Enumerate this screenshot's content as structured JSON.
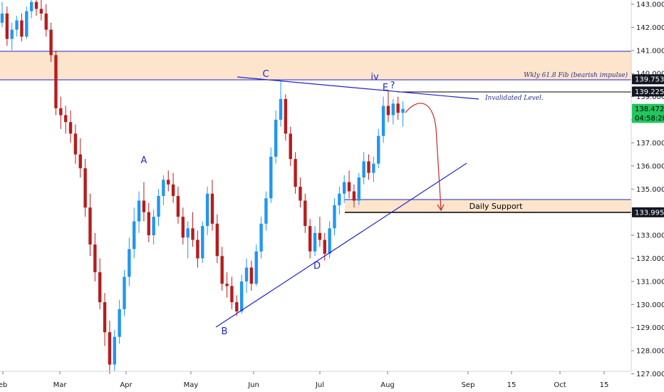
{
  "chart_data": {
    "type": "candlestick",
    "colors": {
      "up": "#2196f3",
      "down": "#b71c1c",
      "zone_fill": "#fce5cc",
      "line": "#2124c7",
      "projection": "#c62828"
    },
    "x_ticks": [
      "eb",
      "Mar",
      "Apr",
      "May",
      "Jun",
      "Jul",
      "Aug",
      "Sep",
      "15",
      "Oct",
      "15"
    ],
    "y_ticks": [
      "143.000",
      "142.000",
      "141.000",
      "140.000",
      "139.000",
      "138.000",
      "137.000",
      "136.000",
      "135.000",
      "134.000",
      "133.000",
      "132.000",
      "131.000",
      "130.000",
      "129.000",
      "128.000",
      "127.000"
    ],
    "ylim": [
      126.8,
      143.3
    ],
    "price_tags": [
      {
        "value": 139.753,
        "text": "139.753",
        "style": "dark"
      },
      {
        "value": 139.225,
        "text": "139.225",
        "style": "dark"
      },
      {
        "value": 138.472,
        "text": "138.472",
        "style": "green"
      },
      {
        "value": 138.08,
        "text": "04:58:28",
        "style": "green"
      },
      {
        "value": 133.995,
        "text": "133.995",
        "style": "dark"
      }
    ],
    "zones": [
      {
        "low": 139.753,
        "high": 140.98,
        "label": "Wkly 61.8 Fib (bearish impulse)"
      },
      {
        "low": 133.995,
        "high": 134.55,
        "label": "Daily Support"
      }
    ],
    "wave_labels": [
      "A",
      "B",
      "C",
      "D",
      "E",
      "?",
      "iv"
    ],
    "annotation": "Invalidated Level.",
    "candles": [
      [
        142.2,
        143.1,
        142.0,
        142.6
      ],
      [
        142.6,
        142.9,
        141.2,
        141.5
      ],
      [
        141.5,
        142.2,
        141.0,
        141.9
      ],
      [
        141.9,
        142.5,
        141.6,
        142.3
      ],
      [
        142.3,
        142.6,
        141.4,
        141.6
      ],
      [
        141.6,
        142.9,
        141.5,
        142.7
      ],
      [
        142.7,
        143.4,
        142.4,
        143.1
      ],
      [
        143.1,
        143.4,
        142.5,
        142.8
      ],
      [
        142.8,
        143.2,
        142.3,
        142.6
      ],
      [
        142.6,
        143.0,
        141.6,
        141.9
      ],
      [
        141.9,
        142.2,
        140.5,
        140.8
      ],
      [
        140.8,
        141.0,
        138.2,
        138.5
      ],
      [
        138.5,
        139.0,
        137.6,
        138.2
      ],
      [
        138.2,
        138.6,
        137.4,
        137.9
      ],
      [
        137.9,
        138.4,
        137.0,
        137.4
      ],
      [
        137.4,
        137.8,
        136.1,
        136.5
      ],
      [
        136.5,
        137.2,
        135.5,
        135.9
      ],
      [
        135.9,
        136.3,
        133.8,
        134.2
      ],
      [
        134.2,
        134.8,
        132.1,
        132.6
      ],
      [
        132.6,
        133.1,
        131.0,
        131.4
      ],
      [
        131.4,
        132.0,
        129.8,
        130.1
      ],
      [
        130.1,
        130.5,
        128.2,
        128.8
      ],
      [
        128.8,
        129.3,
        127.0,
        127.4
      ],
      [
        127.4,
        128.9,
        127.1,
        128.6
      ],
      [
        128.6,
        130.2,
        128.3,
        129.8
      ],
      [
        129.8,
        131.5,
        129.5,
        131.2
      ],
      [
        131.2,
        132.9,
        130.8,
        132.4
      ],
      [
        132.4,
        134.2,
        132.0,
        133.6
      ],
      [
        133.6,
        134.9,
        133.1,
        134.5
      ],
      [
        134.5,
        135.3,
        133.6,
        134.0
      ],
      [
        134.0,
        134.4,
        132.7,
        133.0
      ],
      [
        133.0,
        134.1,
        132.6,
        133.8
      ],
      [
        133.8,
        135.0,
        133.4,
        134.7
      ],
      [
        134.7,
        135.6,
        134.3,
        135.4
      ],
      [
        135.4,
        135.8,
        134.9,
        135.2
      ],
      [
        135.2,
        135.7,
        134.4,
        134.7
      ],
      [
        134.7,
        135.1,
        133.5,
        133.8
      ],
      [
        133.8,
        134.2,
        132.6,
        132.9
      ],
      [
        132.9,
        133.6,
        132.0,
        133.3
      ],
      [
        133.3,
        134.0,
        132.5,
        132.8
      ],
      [
        132.8,
        133.2,
        131.6,
        132.0
      ],
      [
        132.0,
        133.6,
        131.8,
        133.4
      ],
      [
        133.4,
        135.1,
        133.0,
        134.8
      ],
      [
        134.8,
        135.4,
        133.2,
        133.5
      ],
      [
        133.5,
        133.9,
        131.8,
        132.1
      ],
      [
        132.1,
        132.5,
        130.6,
        130.9
      ],
      [
        130.9,
        131.4,
        130.3,
        130.8
      ],
      [
        130.8,
        131.2,
        129.8,
        130.1
      ],
      [
        130.1,
        130.4,
        129.5,
        129.7
      ],
      [
        129.7,
        131.3,
        129.6,
        131.0
      ],
      [
        131.0,
        132.0,
        130.5,
        131.6
      ],
      [
        131.6,
        131.9,
        130.6,
        130.9
      ],
      [
        130.9,
        132.6,
        130.8,
        132.3
      ],
      [
        132.3,
        133.8,
        132.0,
        133.5
      ],
      [
        133.5,
        134.9,
        133.2,
        134.6
      ],
      [
        134.6,
        136.8,
        134.4,
        136.4
      ],
      [
        136.4,
        138.4,
        136.1,
        138.0
      ],
      [
        138.0,
        139.7,
        137.7,
        138.9
      ],
      [
        138.9,
        139.1,
        137.1,
        137.4
      ],
      [
        137.4,
        137.7,
        136.0,
        136.3
      ],
      [
        136.3,
        136.6,
        134.8,
        135.1
      ],
      [
        135.1,
        135.5,
        134.2,
        134.5
      ],
      [
        134.5,
        134.8,
        133.1,
        133.4
      ],
      [
        133.4,
        133.7,
        132.0,
        132.3
      ],
      [
        132.3,
        133.4,
        132.1,
        133.1
      ],
      [
        133.1,
        133.8,
        132.5,
        132.8
      ],
      [
        132.8,
        133.1,
        131.9,
        132.2
      ],
      [
        132.2,
        133.6,
        132.0,
        133.3
      ],
      [
        133.3,
        134.6,
        133.0,
        134.3
      ],
      [
        134.3,
        135.1,
        133.9,
        134.8
      ],
      [
        134.8,
        135.6,
        134.4,
        135.3
      ],
      [
        135.3,
        135.8,
        134.6,
        134.9
      ],
      [
        134.9,
        135.2,
        134.2,
        134.5
      ],
      [
        134.5,
        135.7,
        134.3,
        135.5
      ],
      [
        135.5,
        136.6,
        135.2,
        136.2
      ],
      [
        136.2,
        136.5,
        135.4,
        135.7
      ],
      [
        135.7,
        136.4,
        135.3,
        136.1
      ],
      [
        136.1,
        137.6,
        135.9,
        137.3
      ],
      [
        137.3,
        139.0,
        137.0,
        138.6
      ],
      [
        138.6,
        139.3,
        137.9,
        138.2
      ],
      [
        138.2,
        138.9,
        137.8,
        138.7
      ],
      [
        138.7,
        139.0,
        138.0,
        138.3
      ],
      [
        138.3,
        138.8,
        137.7,
        138.472
      ]
    ]
  }
}
